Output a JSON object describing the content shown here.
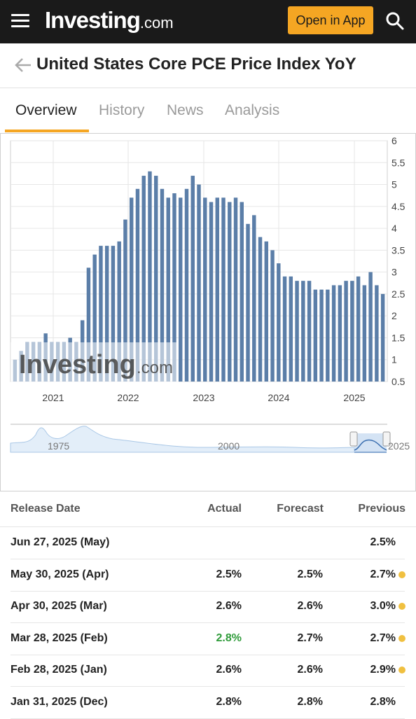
{
  "header": {
    "brand_main": "Investing",
    "brand_suffix": ".com",
    "open_app_label": "Open in App"
  },
  "page": {
    "title": "United States Core PCE Price Index YoY"
  },
  "tabs": [
    {
      "label": "Overview",
      "active": true
    },
    {
      "label": "History",
      "active": false
    },
    {
      "label": "News",
      "active": false
    },
    {
      "label": "Analysis",
      "active": false
    }
  ],
  "chart": {
    "watermark_main": "Investing",
    "watermark_suffix": ".com",
    "navigator_labels": [
      "1975",
      "2000",
      "2025"
    ]
  },
  "chart_data": {
    "type": "bar",
    "title": "",
    "xlabel": "",
    "ylabel": "",
    "ylim": [
      0.5,
      6
    ],
    "yticks": [
      "0.5",
      "1",
      "1.5",
      "2",
      "2.5",
      "3",
      "3.5",
      "4",
      "4.5",
      "5",
      "5.5",
      "6"
    ],
    "xticks": [
      "2021",
      "2022",
      "2023",
      "2024",
      "2025"
    ],
    "bar_color": "#5b7ea8",
    "series": [
      {
        "values": [
          1.0,
          1.2,
          1.4,
          1.4,
          1.4,
          1.6,
          1.4,
          1.4,
          1.4,
          1.5,
          1.4,
          1.9,
          3.1,
          3.4,
          3.6,
          3.6,
          3.6,
          3.7,
          4.2,
          4.7,
          4.9,
          5.2,
          5.3,
          5.2,
          4.9,
          4.7,
          4.8,
          4.7,
          4.9,
          5.2,
          5.0,
          4.7,
          4.6,
          4.7,
          4.7,
          4.6,
          4.7,
          4.6,
          4.1,
          4.3,
          3.8,
          3.7,
          3.5,
          3.2,
          2.9,
          2.9,
          2.8,
          2.8,
          2.8,
          2.6,
          2.6,
          2.6,
          2.7,
          2.7,
          2.8,
          2.8,
          2.9,
          2.7,
          3.0,
          2.7,
          2.5
        ]
      }
    ]
  },
  "table": {
    "headers": {
      "date": "Release Date",
      "actual": "Actual",
      "forecast": "Forecast",
      "previous": "Previous"
    },
    "rows": [
      {
        "date": "Jun 27, 2025 (May)",
        "actual": "",
        "forecast": "",
        "previous": "2.5%",
        "dot": false,
        "actual_color": "#222222"
      },
      {
        "date": "May 30, 2025 (Apr)",
        "actual": "2.5%",
        "forecast": "2.5%",
        "previous": "2.7%",
        "dot": true,
        "actual_color": "#222222"
      },
      {
        "date": "Apr 30, 2025 (Mar)",
        "actual": "2.6%",
        "forecast": "2.6%",
        "previous": "3.0%",
        "dot": true,
        "actual_color": "#222222"
      },
      {
        "date": "Mar 28, 2025 (Feb)",
        "actual": "2.8%",
        "forecast": "2.7%",
        "previous": "2.7%",
        "dot": true,
        "actual_color": "#2f9b3a"
      },
      {
        "date": "Feb 28, 2025 (Jan)",
        "actual": "2.6%",
        "forecast": "2.6%",
        "previous": "2.9%",
        "dot": true,
        "actual_color": "#222222"
      },
      {
        "date": "Jan 31, 2025 (Dec)",
        "actual": "2.8%",
        "forecast": "2.8%",
        "previous": "2.8%",
        "dot": false,
        "actual_color": "#222222"
      }
    ]
  }
}
